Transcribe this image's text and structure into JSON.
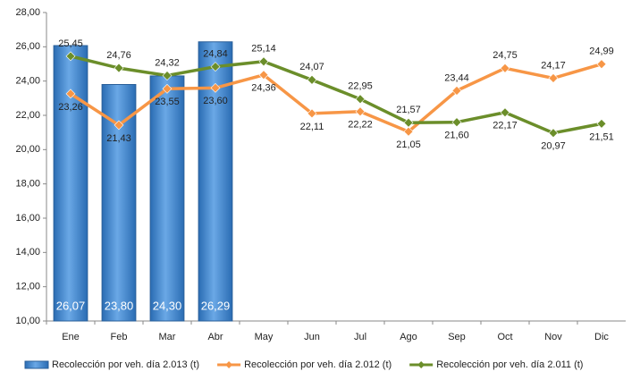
{
  "chart_data": {
    "type": "bar-line",
    "categories": [
      "Ene",
      "Feb",
      "Mar",
      "Abr",
      "May",
      "Jun",
      "Jul",
      "Ago",
      "Sep",
      "Oct",
      "Nov",
      "Dic"
    ],
    "series": [
      {
        "name": "Recolección por veh. día 2.013 (t)",
        "type": "bar",
        "color": "#3e83c9",
        "values": [
          26.07,
          23.8,
          24.3,
          26.29,
          null,
          null,
          null,
          null,
          null,
          null,
          null,
          null
        ],
        "value_labels": [
          "26,07",
          "23,80",
          "24,30",
          "26,29",
          null,
          null,
          null,
          null,
          null,
          null,
          null,
          null
        ]
      },
      {
        "name": "Recolección por veh. día 2.012 (t)",
        "type": "line",
        "color": "#f79646",
        "values": [
          23.26,
          21.43,
          23.55,
          23.6,
          24.36,
          22.11,
          22.22,
          21.05,
          23.44,
          24.75,
          24.17,
          24.99
        ],
        "value_labels": [
          "23,26",
          "21,43",
          "23,55",
          "23,60",
          "24,36",
          "22,11",
          "22,22",
          "21,05",
          "23,44",
          "24,75",
          "24,17",
          "24,99"
        ]
      },
      {
        "name": "Recolección por veh. día 2.011 (t)",
        "type": "line",
        "color": "#6b8e2a",
        "values": [
          25.45,
          24.76,
          24.32,
          24.84,
          25.14,
          24.07,
          22.95,
          21.57,
          21.6,
          22.17,
          20.97,
          21.51
        ],
        "value_labels": [
          "25,45",
          "24,76",
          "24,32",
          "24,84",
          "25,14",
          "24,07",
          "22,95",
          "21,57",
          "21,60",
          "22,17",
          "20,97",
          "21,51"
        ]
      }
    ],
    "ylim": [
      10,
      28
    ],
    "yticks": [
      {
        "value": 10,
        "label": "10,00"
      },
      {
        "value": 12,
        "label": "12,00"
      },
      {
        "value": 14,
        "label": "14,00"
      },
      {
        "value": 16,
        "label": "16,00"
      },
      {
        "value": 18,
        "label": "18,00"
      },
      {
        "value": 20,
        "label": "20,00"
      },
      {
        "value": 22,
        "label": "22,00"
      },
      {
        "value": 24,
        "label": "24,00"
      },
      {
        "value": 26,
        "label": "26,00"
      },
      {
        "value": 28,
        "label": "28,00"
      }
    ],
    "legend": "bottom"
  }
}
